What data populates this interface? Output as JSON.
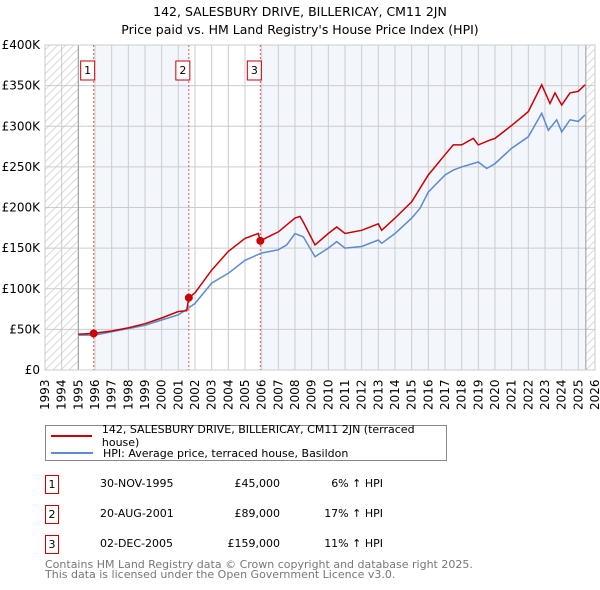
{
  "chart_data": {
    "type": "line",
    "title": "142, SALESBURY DRIVE, BILLERICAY, CM11 2JN",
    "subtitle": "Price paid vs. HM Land Registry's House Price Index (HPI)",
    "xlim": [
      1993,
      2026
    ],
    "ylim": [
      0,
      400000
    ],
    "y_ticks": [
      0,
      50000,
      100000,
      150000,
      200000,
      250000,
      300000,
      350000,
      400000
    ],
    "y_tick_labels": [
      "£0",
      "£50K",
      "£100K",
      "£150K",
      "£200K",
      "£250K",
      "£300K",
      "£350K",
      "£400K"
    ],
    "x_tick_labels": [
      "1993",
      "1994",
      "1995",
      "1996",
      "1997",
      "1998",
      "1999",
      "2000",
      "2001",
      "2002",
      "2003",
      "2004",
      "2005",
      "2006",
      "2007",
      "2008",
      "2009",
      "2010",
      "2011",
      "2012",
      "2013",
      "2014",
      "2015",
      "2016",
      "2017",
      "2018",
      "2019",
      "2020",
      "2021",
      "2022",
      "2023",
      "2024",
      "2025",
      "2026"
    ],
    "grid": true,
    "data_range": [
      1995.0,
      2025.45
    ],
    "series": [
      {
        "name": "142, SALESBURY DRIVE, BILLERICAY, CM11 2JN (terraced house)",
        "color": "#cc0000",
        "x": [
          1995.0,
          1995.9,
          1997,
          1998,
          1999,
          2000,
          2001,
          2001.5,
          2001.63,
          2002,
          2003,
          2004,
          2005,
          2005.8,
          2005.92,
          2006.5,
          2007,
          2008,
          2008.3,
          2008.5,
          2009.2,
          2010,
          2010.5,
          2011,
          2012,
          2013,
          2013.2,
          2014,
          2015,
          2016,
          2017,
          2017.5,
          2018,
          2018.7,
          2019,
          2019.7,
          2020,
          2021,
          2022,
          2022.8,
          2023.3,
          2023.6,
          2024,
          2024.5,
          2025,
          2025.4
        ],
        "y": [
          44000,
          45000,
          48000,
          52000,
          57000,
          64000,
          72000,
          73000,
          89000,
          95000,
          123000,
          146000,
          162000,
          168000,
          159000,
          165000,
          170000,
          187000,
          189000,
          182000,
          154000,
          168000,
          176000,
          168000,
          172000,
          180000,
          172000,
          187000,
          207000,
          240000,
          265000,
          277000,
          277000,
          285000,
          277000,
          283000,
          285000,
          301000,
          318000,
          351000,
          328000,
          341000,
          326000,
          341000,
          343000,
          351000
        ]
      },
      {
        "name": "HPI: Average price, terraced house, Basildon",
        "color": "#5b8bd0",
        "x": [
          1995.0,
          1996,
          1997,
          1998,
          1999,
          2000,
          2001,
          2001.6,
          2002,
          2003,
          2004,
          2005,
          2006,
          2007,
          2007.5,
          2008,
          2008.5,
          2009.2,
          2010,
          2010.5,
          2011,
          2012,
          2013,
          2013.2,
          2014,
          2015,
          2015.5,
          2016,
          2017,
          2017.5,
          2018,
          2019,
          2019.5,
          2020,
          2021,
          2022,
          2022.8,
          2023.2,
          2023.7,
          2024,
          2024.5,
          2025,
          2025.4
        ],
        "y": [
          43000,
          43000,
          47000,
          51000,
          55000,
          61500,
          68000,
          76000,
          82000,
          107000,
          119000,
          135000,
          144000,
          148000,
          154000,
          168000,
          164000,
          139500,
          150000,
          158000,
          150000,
          152000,
          160000,
          156000,
          168000,
          187000,
          199000,
          219000,
          240000,
          246000,
          250000,
          256000,
          248000,
          254000,
          273000,
          287000,
          316000,
          295000,
          308000,
          293000,
          308000,
          306000,
          314000
        ]
      }
    ],
    "sales": [
      {
        "label": "1",
        "x": 1995.92,
        "y": 45000
      },
      {
        "label": "2",
        "x": 2001.63,
        "y": 89000
      },
      {
        "label": "3",
        "x": 2005.92,
        "y": 159000
      }
    ]
  },
  "legend": {
    "property": "142, SALESBURY DRIVE, BILLERICAY, CM11 2JN (terraced house)",
    "hpi": "HPI: Average price, terraced house, Basildon"
  },
  "transactions": [
    {
      "num": "1",
      "date": "30-NOV-1995",
      "price": "£45,000",
      "hpi": "6% ↑ HPI"
    },
    {
      "num": "2",
      "date": "20-AUG-2001",
      "price": "£89,000",
      "hpi": "17% ↑ HPI"
    },
    {
      "num": "3",
      "date": "02-DEC-2005",
      "price": "£159,000",
      "hpi": "11% ↑ HPI"
    }
  ],
  "footer": {
    "line1": "Contains HM Land Registry data © Crown copyright and database right 2025.",
    "line2": "This data is licensed under the Open Government Licence v3.0."
  }
}
